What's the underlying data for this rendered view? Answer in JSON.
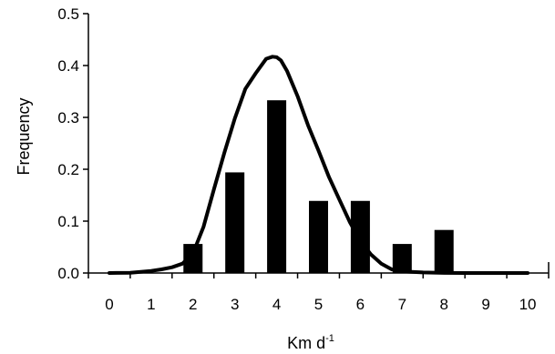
{
  "chart_data": {
    "type": "bar",
    "xlabel": "Km d",
    "xlabel_superscript": "-1",
    "ylabel": "Frequency",
    "x_ticks": [
      "0",
      "1",
      "2",
      "3",
      "4",
      "5",
      "6",
      "7",
      "8",
      "9",
      "10"
    ],
    "y_ticks": [
      "0.0",
      "0.1",
      "0.2",
      "0.3",
      "0.4",
      "0.5"
    ],
    "xlim": [
      -0.5,
      10.5
    ],
    "ylim": [
      0,
      0.5
    ],
    "grid": false,
    "legend": "none",
    "bar_color": "#000000",
    "bars": {
      "x": [
        2,
        3,
        4,
        5,
        6,
        7,
        8
      ],
      "values": [
        0.056,
        0.194,
        0.333,
        0.139,
        0.139,
        0.056,
        0.083
      ]
    },
    "fitted_curve": {
      "type": "line",
      "x": [
        0,
        0.5,
        1,
        1.25,
        1.5,
        1.75,
        2,
        2.25,
        2.5,
        2.75,
        3,
        3.25,
        3.5,
        3.75,
        3.9,
        4,
        4.1,
        4.25,
        4.5,
        4.75,
        5,
        5.25,
        5.5,
        5.75,
        6,
        6.25,
        6.5,
        6.75,
        7,
        7.5,
        8,
        9,
        10
      ],
      "y": [
        0.0,
        0.0005,
        0.004,
        0.007,
        0.011,
        0.018,
        0.038,
        0.089,
        0.161,
        0.232,
        0.298,
        0.355,
        0.385,
        0.413,
        0.417,
        0.416,
        0.41,
        0.389,
        0.341,
        0.285,
        0.236,
        0.185,
        0.141,
        0.098,
        0.062,
        0.036,
        0.018,
        0.007,
        0.003,
        0.001,
        0.0002,
        0.0,
        0.0
      ]
    }
  }
}
